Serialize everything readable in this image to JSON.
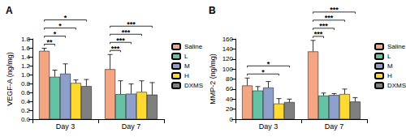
{
  "chart_data": [
    {
      "type": "bar",
      "title": "A",
      "y_label": "VEGF-A (ng/mg)",
      "categories": [
        "Day 3",
        "Day 7"
      ],
      "series": [
        {
          "name": "Saline",
          "color": "#f4a582",
          "values": [
            1.53,
            1.12
          ],
          "errors": [
            0.06,
            0.33
          ]
        },
        {
          "name": "L",
          "color": "#66c2a5",
          "values": [
            0.95,
            0.56
          ],
          "errors": [
            0.15,
            0.3
          ]
        },
        {
          "name": "M",
          "color": "#8da0cb",
          "values": [
            1.02,
            0.57
          ],
          "errors": [
            0.22,
            0.22
          ]
        },
        {
          "name": "H",
          "color": "#ffd92f",
          "values": [
            0.81,
            0.61
          ],
          "errors": [
            0.07,
            0.25
          ]
        },
        {
          "name": "DXMS",
          "color": "#7f7f7f",
          "values": [
            0.74,
            0.55
          ],
          "errors": [
            0.15,
            0.27
          ]
        }
      ],
      "ylim": [
        0,
        1.8
      ],
      "yticks": [
        {
          "value": 0,
          "label": "0.0"
        },
        0.2,
        0.4,
        0.6,
        0.8,
        {
          "value": 1,
          "label": "1.0"
        },
        1.2,
        1.4,
        1.6,
        1.8
      ],
      "grid": false,
      "legend": "upper right",
      "annotations": [
        {
          "category": "Day 3",
          "from": "Saline",
          "to": "L",
          "label": "**"
        },
        {
          "category": "Day 3",
          "from": "Saline",
          "to": "M",
          "label": "*"
        },
        {
          "category": "Day 3",
          "from": "Saline",
          "to": "H",
          "label": "*"
        },
        {
          "category": "Day 3",
          "from": "Saline",
          "to": "DXMS",
          "label": "*"
        },
        {
          "category": "Day 7",
          "from": "Saline",
          "to": "L",
          "label": "***"
        },
        {
          "category": "Day 7",
          "from": "Saline",
          "to": "M",
          "label": "***"
        },
        {
          "category": "Day 7",
          "from": "Saline",
          "to": "H",
          "label": "***"
        },
        {
          "category": "Day 7",
          "from": "Saline",
          "to": "DXMS",
          "label": "***"
        }
      ]
    },
    {
      "type": "bar",
      "title": "B",
      "y_label": "MMP-2 (ng/mg)",
      "categories": [
        "Day 3",
        "Day 7"
      ],
      "series": [
        {
          "name": "Saline",
          "color": "#f4a582",
          "values": [
            67,
            135
          ],
          "errors": [
            15,
            22
          ]
        },
        {
          "name": "L",
          "color": "#66c2a5",
          "values": [
            57,
            47
          ],
          "errors": [
            8,
            5
          ]
        },
        {
          "name": "M",
          "color": "#8da0cb",
          "values": [
            63,
            48
          ],
          "errors": [
            12,
            3
          ]
        },
        {
          "name": "H",
          "color": "#ffd92f",
          "values": [
            31,
            50
          ],
          "errors": [
            10,
            10
          ]
        },
        {
          "name": "DXMS",
          "color": "#7f7f7f",
          "values": [
            34,
            35
          ],
          "errors": [
            6,
            8
          ]
        }
      ],
      "ylim": [
        0,
        160
      ],
      "yticks": [
        0,
        20,
        40,
        60,
        80,
        100,
        120,
        140,
        160
      ],
      "grid": false,
      "legend": "upper right",
      "annotations": [
        {
          "category": "Day 3",
          "from": "Saline",
          "to": "H",
          "label": "*"
        },
        {
          "category": "Day 3",
          "from": "Saline",
          "to": "DXMS",
          "label": "*"
        },
        {
          "category": "Day 7",
          "from": "Saline",
          "to": "L",
          "label": "***"
        },
        {
          "category": "Day 7",
          "from": "Saline",
          "to": "M",
          "label": "***"
        },
        {
          "category": "Day 7",
          "from": "Saline",
          "to": "H",
          "label": "***"
        },
        {
          "category": "Day 7",
          "from": "Saline",
          "to": "DXMS",
          "label": "***"
        }
      ]
    }
  ]
}
